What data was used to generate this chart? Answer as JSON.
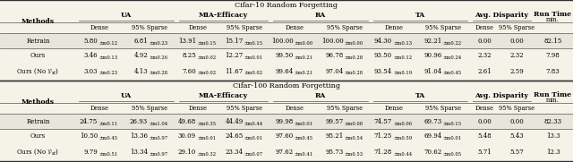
{
  "title1": "Cifar-10 Random Forgetting",
  "title2": "Cifar-100 Random Forgetting",
  "cifar10_data": [
    [
      "5.80",
      "\\pm0.12",
      "6.81",
      "\\pm0.23",
      "13.91",
      "\\pm0.15",
      "15.17",
      "\\pm0.15",
      "100.00",
      "\\pm0.00",
      "100.00",
      "\\pm0.00",
      "94.30",
      "\\pm0.13",
      "92.21",
      "\\pm0.22",
      "0.00",
      "",
      "0.00",
      "",
      "82.15"
    ],
    [
      "3.46",
      "\\pm0.13",
      "4.92",
      "\\pm0.26",
      "8.25",
      "\\pm0.02",
      "12.27",
      "\\pm0.01",
      "99.50",
      "\\pm0.21",
      "96.78",
      "\\pm0.28",
      "93.50",
      "\\pm0.12",
      "90.96",
      "\\pm0.24",
      "2.32",
      "",
      "2.32",
      "",
      "7.98"
    ],
    [
      "3.03",
      "\\pm0.23",
      "4.13",
      "\\pm0.28",
      "7.60",
      "\\pm0.02",
      "11.67",
      "\\pm0.02",
      "99.64",
      "\\pm0.21",
      "97.04",
      "\\pm0.28",
      "93.54",
      "\\pm0.19",
      "91.04",
      "\\pm0.45",
      "2.61",
      "",
      "2.59",
      "",
      "7.83"
    ]
  ],
  "cifar100_data": [
    [
      "24.75",
      "\\pm0.11",
      "26.93",
      "\\pm1.04",
      "49.68",
      "\\pm0.35",
      "44.49",
      "\\pm0.44",
      "99.98",
      "\\pm0.01",
      "99.57",
      "\\pm0.08",
      "74.57",
      "\\pm0.06",
      "69.73",
      "\\pm0.15",
      "0.00",
      "",
      "0.00",
      "",
      "82.33"
    ],
    [
      "10.50",
      "\\pm0.45",
      "13.36",
      "\\pm0.97",
      "30.09",
      "\\pm0.01",
      "24.65",
      "\\pm0.01",
      "97.60",
      "\\pm0.45",
      "95.21",
      "\\pm0.54",
      "71.25",
      "\\pm0.59",
      "69.94",
      "\\pm0.01",
      "5.48",
      "",
      "5.43",
      "",
      "13.3"
    ],
    [
      "9.79",
      "\\pm0.51",
      "13.34",
      "\\pm0.97",
      "29.10",
      "\\pm0.32",
      "23.34",
      "\\pm0.07",
      "97.62",
      "\\pm0.41",
      "95.73",
      "\\pm0.53",
      "71.28",
      "\\pm0.44",
      "70.62",
      "\\pm0.05",
      "5.71",
      "",
      "5.57",
      "",
      "12.3"
    ]
  ],
  "methods": [
    "Retrain",
    "Ours",
    "Ours (No $\\mathcal{V}_{st}$)"
  ],
  "col_groups": [
    {
      "label": "UA",
      "span": [
        1,
        2
      ]
    },
    {
      "label": "MIA-Efficacy",
      "span": [
        3,
        4
      ]
    },
    {
      "label": "RA",
      "span": [
        5,
        6
      ]
    },
    {
      "label": "TA",
      "span": [
        7,
        8
      ]
    },
    {
      "label": "Avg. Disparity",
      "span": [
        9,
        10
      ]
    }
  ],
  "bg_header": "#f0ede4",
  "bg_retrain": "#e8e5dc",
  "bg_normal": "#f5f2e8",
  "line_color": "#555555"
}
